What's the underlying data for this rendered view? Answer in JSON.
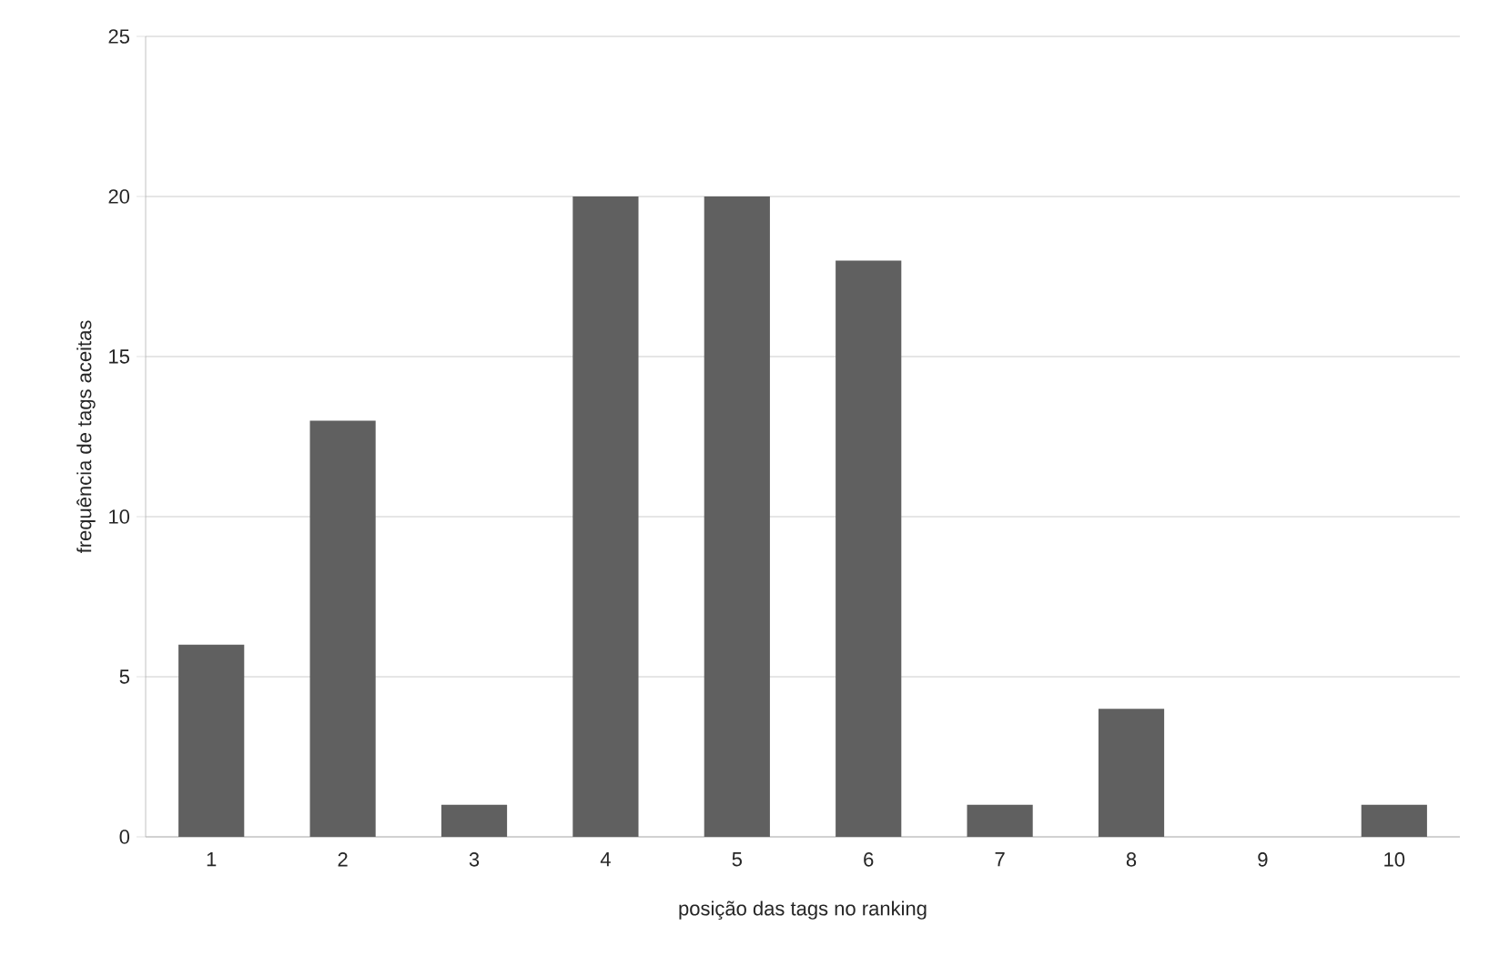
{
  "chart_data": {
    "type": "bar",
    "xlabel": "posição das tags no ranking",
    "ylabel": "frequência de tags aceitas",
    "categories": [
      "1",
      "2",
      "3",
      "4",
      "5",
      "6",
      "7",
      "8",
      "9",
      "10"
    ],
    "values": [
      6,
      13,
      1,
      20,
      20,
      18,
      1,
      4,
      0,
      1
    ],
    "color": "#606060",
    "ylim": [
      0,
      25
    ],
    "yticks": [
      0,
      5,
      10,
      15,
      20,
      25
    ],
    "grid": "y"
  }
}
